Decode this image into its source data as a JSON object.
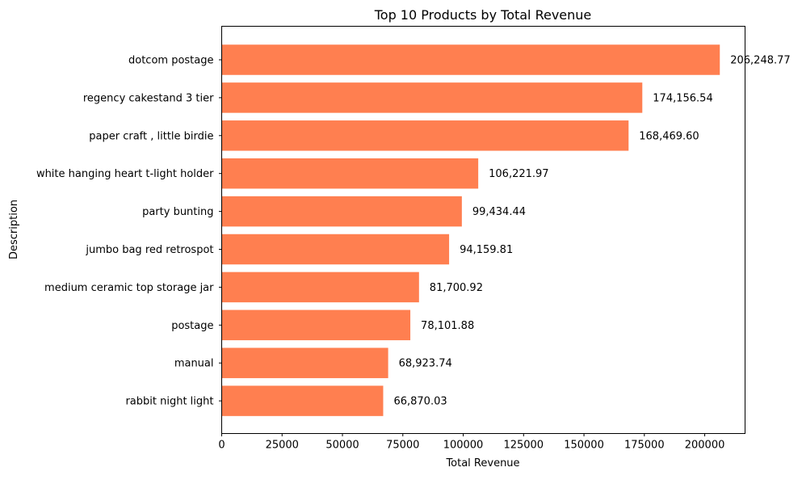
{
  "chart_data": {
    "type": "bar",
    "orientation": "horizontal",
    "title": "Top 10 Products by Total Revenue",
    "xlabel": "Total Revenue",
    "ylabel": "Description",
    "xlim": [
      0,
      216700
    ],
    "xticks": [
      0,
      25000,
      50000,
      75000,
      100000,
      125000,
      150000,
      175000,
      200000
    ],
    "xtick_labels": [
      "0",
      "25000",
      "50000",
      "75000",
      "100000",
      "125000",
      "150000",
      "175000",
      "200000"
    ],
    "bar_color": "#ff7f50",
    "grid": false,
    "categories": [
      "dotcom postage",
      "regency cakestand 3 tier",
      "paper craft , little birdie",
      "white hanging heart t-light holder",
      "party bunting",
      "jumbo bag red retrospot",
      "medium ceramic top storage jar",
      "postage",
      "manual",
      "rabbit night light"
    ],
    "values": [
      206248.77,
      174156.54,
      168469.6,
      106221.97,
      99434.44,
      94159.81,
      81700.92,
      78101.88,
      68923.74,
      66870.03
    ],
    "value_labels": [
      "206,248.77",
      "174,156.54",
      "168,469.60",
      "106,221.97",
      "99,434.44",
      "94,159.81",
      "81,700.92",
      "78,101.88",
      "68,923.74",
      "66,870.03"
    ]
  }
}
